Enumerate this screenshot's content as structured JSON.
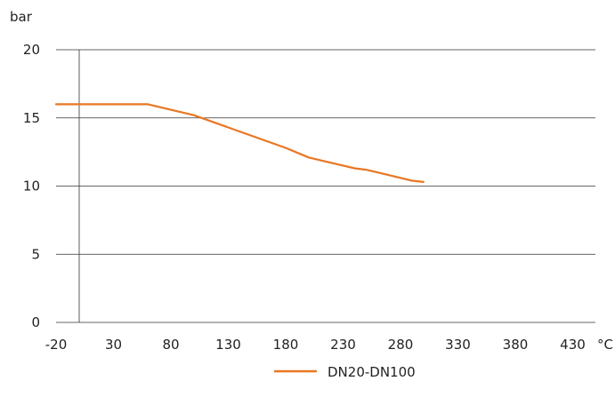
{
  "chart_data": {
    "type": "line",
    "ylabel": "bar",
    "xlabel": "°C",
    "xlim": [
      -20,
      450
    ],
    "ylim": [
      0,
      20
    ],
    "x_ticks": [
      "-20",
      "30",
      "80",
      "130",
      "180",
      "230",
      "280",
      "330",
      "380",
      "430"
    ],
    "y_ticks": [
      "0",
      "5",
      "10",
      "15",
      "20"
    ],
    "grid": "horizontal",
    "legend_position": "bottom-center",
    "series": [
      {
        "name": "DN20-DN100",
        "color": "#E87722",
        "x": [
          -20,
          60,
          100,
          140,
          180,
          200,
          220,
          240,
          250,
          270,
          290,
          300
        ],
        "y": [
          16,
          16,
          15.2,
          14,
          12.8,
          12.1,
          11.7,
          11.3,
          11.2,
          10.8,
          10.4,
          10.3
        ]
      }
    ]
  }
}
